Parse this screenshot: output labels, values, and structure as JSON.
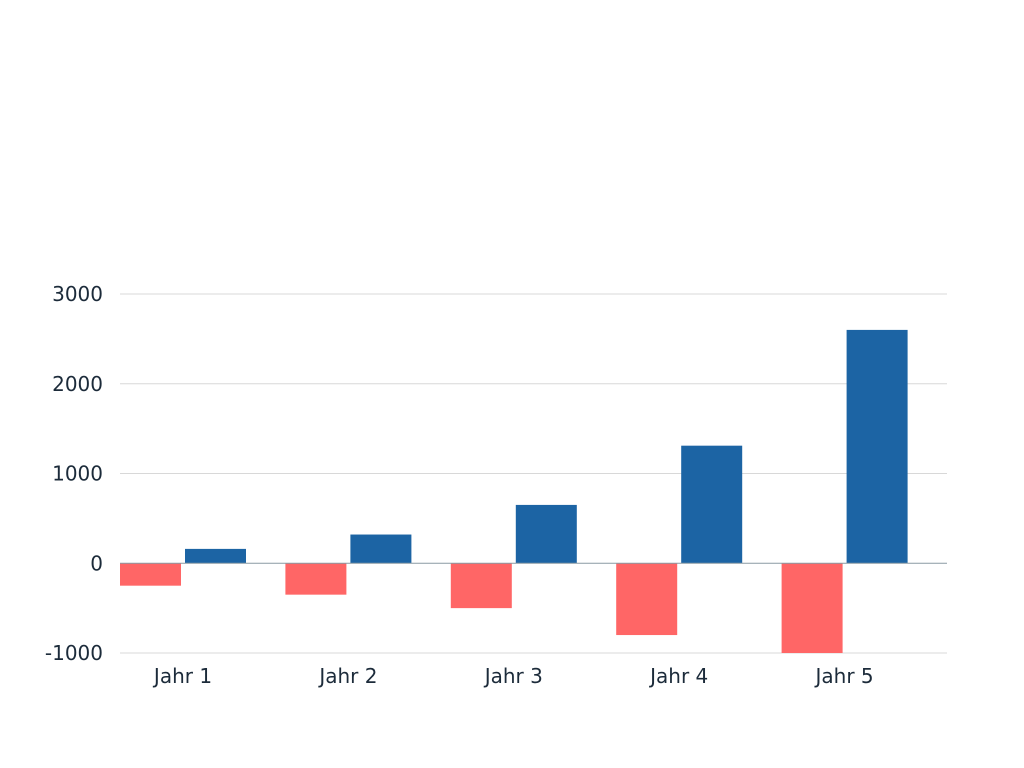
{
  "chart_data": {
    "type": "bar",
    "categories": [
      "Jahr 1",
      "Jahr 2",
      "Jahr 3",
      "Jahr 4",
      "Jahr 5"
    ],
    "series": [
      {
        "values": [
          -250,
          -350,
          -500,
          -800,
          -1000
        ],
        "color": "#ff6666"
      },
      {
        "values": [
          160,
          320,
          650,
          1310,
          2600
        ],
        "color": "#1c64a4"
      }
    ],
    "y_ticks": [
      "3000",
      "2000",
      "1000",
      "0",
      "-1000"
    ],
    "ylim": [
      -1000,
      3000
    ],
    "grid": true
  }
}
